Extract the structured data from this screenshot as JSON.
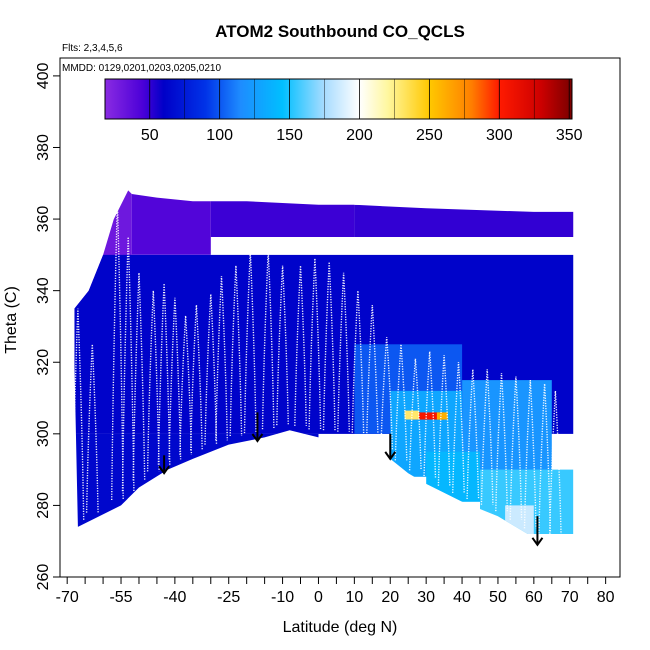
{
  "chart_data": {
    "type": "heatmap",
    "title": "ATOM2 Southbound CO_QCLS",
    "notes": [
      "Flts: 2,3,4,5,6",
      "MMDD: 0129,0201,0203,0205,0210"
    ],
    "xlabel": "Latitude (deg N)",
    "ylabel": "Theta (C)",
    "xlim": [
      -72,
      84
    ],
    "ylim": [
      260,
      405
    ],
    "x_ticks": [
      -70,
      -55,
      -40,
      -25,
      -10,
      0,
      10,
      20,
      30,
      40,
      50,
      60,
      70,
      80
    ],
    "x_tick_labels": [
      "-70",
      "-55",
      "-40",
      "-25",
      "-10",
      "0",
      "10",
      "20",
      "30",
      "40",
      "50",
      "60",
      "70",
      "80"
    ],
    "x_minor_ticks": [
      -65,
      -60,
      -50,
      -45,
      -35,
      -30,
      -20,
      -15,
      -5,
      5,
      15,
      25,
      35,
      45,
      55,
      65,
      75
    ],
    "y_ticks": [
      260,
      280,
      300,
      320,
      340,
      360,
      380,
      400
    ],
    "y_tick_labels": [
      "260",
      "280",
      "300",
      "320",
      "340",
      "360",
      "380",
      "400"
    ],
    "colorbar": {
      "range": [
        18,
        352
      ],
      "ticks": [
        50,
        100,
        150,
        200,
        250,
        300,
        350
      ],
      "tick_labels": [
        "50",
        "100",
        "150",
        "200",
        "250",
        "300",
        "350"
      ],
      "stops": [
        {
          "v": 18,
          "color": "#8a2be2"
        },
        {
          "v": 45,
          "color": "#4b00d8"
        },
        {
          "v": 60,
          "color": "#0000c8"
        },
        {
          "v": 90,
          "color": "#0033e8"
        },
        {
          "v": 115,
          "color": "#1e8cff"
        },
        {
          "v": 145,
          "color": "#00bfff"
        },
        {
          "v": 175,
          "color": "#a8dcff"
        },
        {
          "v": 200,
          "color": "#ffffff"
        },
        {
          "v": 220,
          "color": "#fff7a0"
        },
        {
          "v": 250,
          "color": "#ffc800"
        },
        {
          "v": 280,
          "color": "#ff7f00"
        },
        {
          "v": 300,
          "color": "#ff1a00"
        },
        {
          "v": 330,
          "color": "#cc0000"
        },
        {
          "v": 352,
          "color": "#7a0000"
        }
      ]
    },
    "coverage_bottom": [
      [
        -67,
        274
      ],
      [
        -55,
        280
      ],
      [
        -50,
        285
      ],
      [
        -42,
        290
      ],
      [
        -35,
        293
      ],
      [
        -25,
        297
      ],
      [
        -15,
        299
      ],
      [
        -8,
        301
      ],
      [
        0,
        299
      ],
      [
        5,
        299
      ],
      [
        10,
        298
      ],
      [
        15,
        296
      ],
      [
        20,
        293
      ],
      [
        25,
        289
      ],
      [
        30,
        286
      ],
      [
        40,
        281
      ],
      [
        50,
        277
      ],
      [
        60,
        271
      ],
      [
        71,
        268
      ]
    ],
    "coverage_top": [
      [
        71,
        270
      ],
      [
        71,
        362
      ],
      [
        60,
        362
      ],
      [
        30,
        363
      ],
      [
        10,
        364
      ],
      [
        0,
        364
      ],
      [
        -20,
        365
      ],
      [
        -35,
        365
      ],
      [
        -45,
        366
      ],
      [
        -52,
        367
      ],
      [
        -53,
        368
      ],
      [
        -57,
        360
      ],
      [
        -60,
        350
      ],
      [
        -64,
        340
      ],
      [
        -68,
        335
      ],
      [
        -68,
        320
      ],
      [
        -67,
        274
      ]
    ],
    "field_cells": [
      {
        "lat": [
          -68,
          -52
        ],
        "theta": [
          320,
          368
        ],
        "v": 30
      },
      {
        "lat": [
          -52,
          -30
        ],
        "theta": [
          350,
          368
        ],
        "v": 42
      },
      {
        "lat": [
          -30,
          10
        ],
        "theta": [
          355,
          366
        ],
        "v": 48
      },
      {
        "lat": [
          10,
          71
        ],
        "theta": [
          355,
          364
        ],
        "v": 50
      },
      {
        "lat": [
          -68,
          71
        ],
        "theta": [
          300,
          350
        ],
        "v": 62
      },
      {
        "lat": [
          -68,
          0
        ],
        "theta": [
          274,
          300
        ],
        "v": 64
      },
      {
        "lat": [
          10,
          40
        ],
        "theta": [
          300,
          325
        ],
        "v": 100
      },
      {
        "lat": [
          20,
          40
        ],
        "theta": [
          288,
          312
        ],
        "v": 130
      },
      {
        "lat": [
          40,
          65
        ],
        "theta": [
          285,
          315
        ],
        "v": 120
      },
      {
        "lat": [
          45,
          71
        ],
        "theta": [
          272,
          290
        ],
        "v": 155
      },
      {
        "lat": [
          52,
          60
        ],
        "theta": [
          272,
          280
        ],
        "v": 185
      },
      {
        "lat": [
          30,
          45
        ],
        "theta": [
          281,
          295
        ],
        "v": 140
      },
      {
        "lat": [
          26,
          35
        ],
        "theta": [
          304,
          306
        ],
        "v": 305
      },
      {
        "lat": [
          24,
          28
        ],
        "theta": [
          304,
          306.5
        ],
        "v": 230
      },
      {
        "lat": [
          33,
          36
        ],
        "theta": [
          304,
          306
        ],
        "v": 260
      }
    ],
    "profiles_lat": [
      -67,
      -63,
      -56,
      -53,
      -50,
      -46,
      -43,
      -40,
      -37,
      -34,
      -30,
      -27,
      -23,
      -19,
      -14,
      -10,
      -5,
      -1,
      3,
      7,
      11,
      15,
      19,
      23,
      27,
      31,
      35,
      39,
      43,
      47,
      51,
      55,
      59,
      63,
      66
    ],
    "profiles_theta_top": [
      335,
      325,
      365,
      355,
      345,
      340,
      342,
      338,
      333,
      336,
      339,
      344,
      347,
      351,
      351,
      347,
      347,
      349,
      348,
      345,
      340,
      336,
      327,
      325,
      321,
      323,
      322,
      320,
      318,
      318,
      317,
      316,
      315,
      314,
      312
    ],
    "arrows": [
      {
        "lat": -43,
        "theta_from": 294,
        "theta_to": 289
      },
      {
        "lat": -17,
        "theta_from": 306,
        "theta_to": 298
      },
      {
        "lat": 20,
        "theta_from": 300,
        "theta_to": 293
      },
      {
        "lat": 61,
        "theta_from": 277,
        "theta_to": 269
      }
    ]
  }
}
